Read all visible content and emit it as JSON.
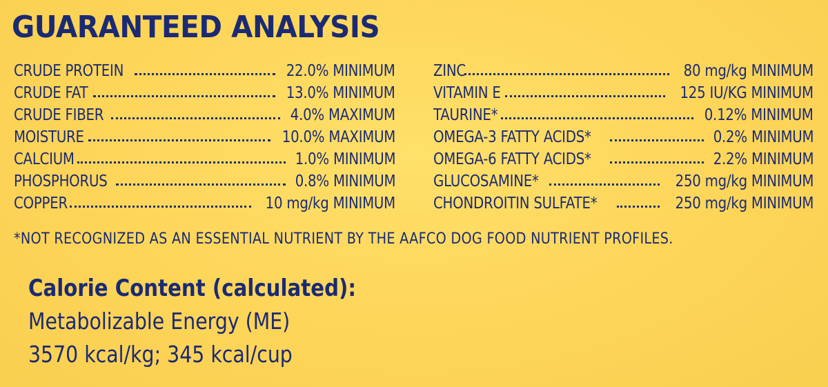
{
  "title": "GUARANTEED ANALYSIS",
  "left_rows": [
    {
      "label": "CRUDE PROTEIN",
      "value": "22.0% MINIMUM"
    },
    {
      "label": "CRUDE FAT",
      "value": "13.0% MINIMUM"
    },
    {
      "label": "CRUDE FIBER",
      "value": "4.0% MAXIMUM"
    },
    {
      "label": "MOISTURE",
      "value": "10.0% MAXIMUM"
    },
    {
      "label": "CALCIUM",
      "value": "1.0% MINIMUM"
    },
    {
      "label": "PHOSPHORUS",
      "value": "0.8% MINIMUM"
    },
    {
      "label": "COPPER",
      "value": "10 mg/kg MINIMUM"
    }
  ],
  "right_rows": [
    {
      "label": "ZINC",
      "value": "80 mg/kg MINIMUM"
    },
    {
      "label": "VITAMIN E",
      "value": "125 IU/KG MINIMUM"
    },
    {
      "label": "TAURINE*",
      "value": "0.12% MINIMUM"
    },
    {
      "label": "OMEGA-3 FATTY ACIDS*",
      "value": "0.2% MINIMUM"
    },
    {
      "label": "OMEGA-6 FATTY ACIDS*",
      "value": "2.2% MINIMUM"
    },
    {
      "label": "GLUCOSAMINE*",
      "value": "250 mg/kg MINIMUM"
    },
    {
      "label": "CHONDROITIN SULFATE*",
      "value": "250 mg/kg MINIMUM"
    }
  ],
  "footnote": "*NOT RECOGNIZED AS AN ESSENTIAL NUTRIENT BY THE AAFCO DOG FOOD NUTRIENT PROFILES.",
  "calorie": {
    "title": "Calorie Content (calculated):",
    "line1": "Metabolizable Energy (ME)",
    "line2": "3570 kcal/kg; 345 kcal/cup"
  },
  "colors": {
    "background": "#fdd559",
    "text": "#1b2a73"
  }
}
